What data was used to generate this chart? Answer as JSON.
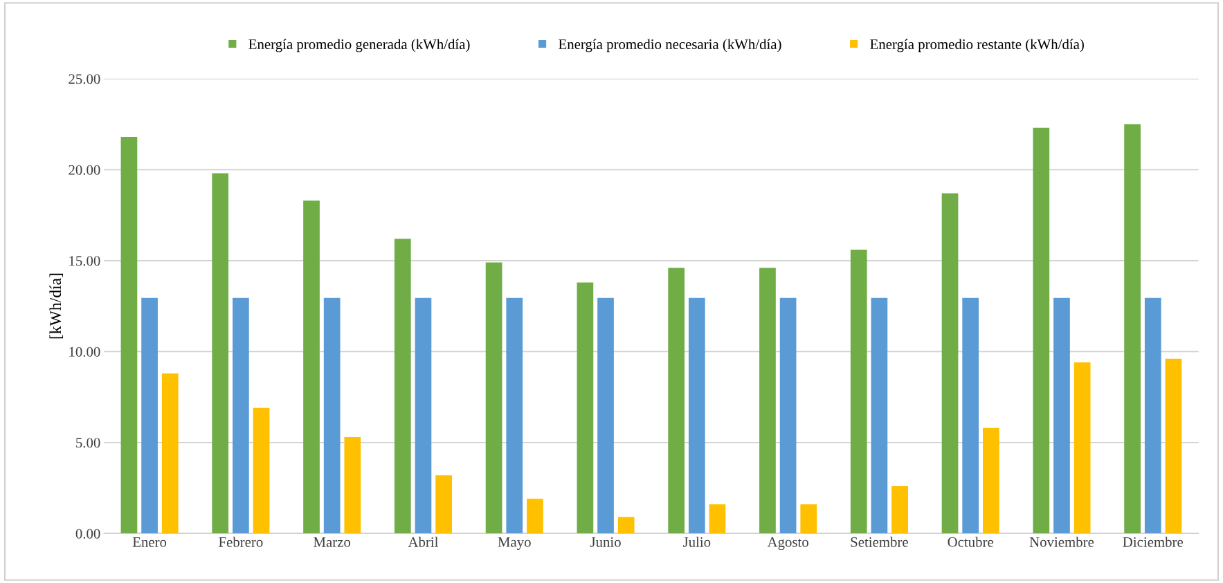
{
  "chart_data": {
    "type": "bar",
    "ylabel": "[kWh/día]",
    "categories": [
      "Enero",
      "Febrero",
      "Marzo",
      "Abril",
      "Mayo",
      "Junio",
      "Julio",
      "Agosto",
      "Setiembre",
      "Octubre",
      "Noviembre",
      "Diciembre"
    ],
    "series": [
      {
        "name": "Energía promedio generada (kWh/día)",
        "color": "#70ad47",
        "values": [
          21.8,
          19.8,
          18.3,
          16.2,
          14.9,
          13.8,
          14.6,
          14.6,
          15.6,
          18.7,
          22.3,
          22.5
        ]
      },
      {
        "name": "Energía promedio necesaria (kWh/día)",
        "color": "#5b9bd5",
        "values": [
          12.95,
          12.95,
          12.95,
          12.95,
          12.95,
          12.95,
          12.95,
          12.95,
          12.95,
          12.95,
          12.95,
          12.95
        ]
      },
      {
        "name": "Energía promedio restante (kWh/día)",
        "color": "#ffc000",
        "values": [
          8.8,
          6.9,
          5.3,
          3.2,
          1.9,
          0.9,
          1.6,
          1.6,
          2.6,
          5.8,
          9.4,
          9.6
        ]
      }
    ],
    "ylim": [
      0,
      25
    ],
    "yticks": [
      {
        "value": 0,
        "label": "0.00"
      },
      {
        "value": 5,
        "label": "5.00"
      },
      {
        "value": 10,
        "label": "10.00"
      },
      {
        "value": 15,
        "label": "15.00"
      },
      {
        "value": 20,
        "label": "20.00"
      },
      {
        "value": 25,
        "label": "25.00"
      }
    ],
    "grid": "y",
    "legend": "top",
    "marker": "square"
  }
}
